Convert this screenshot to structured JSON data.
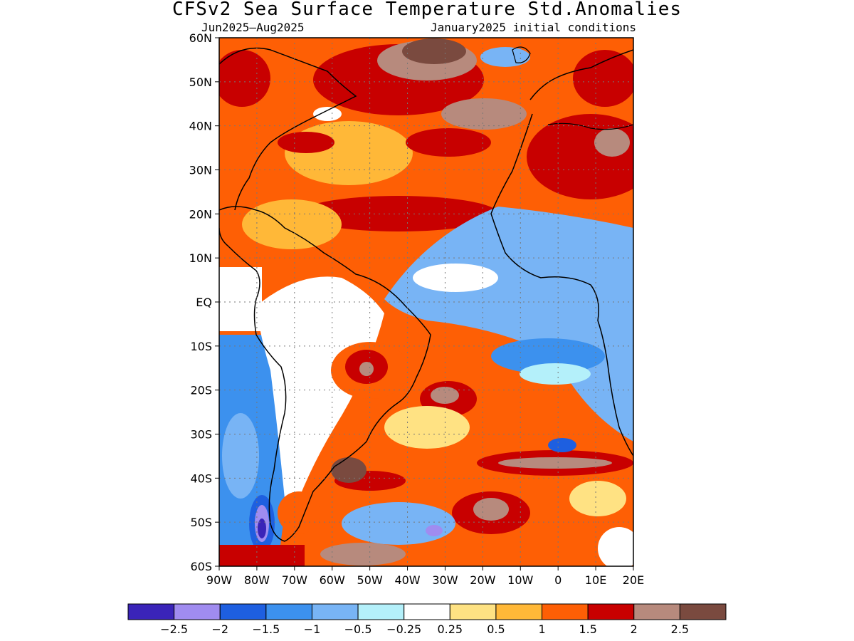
{
  "title": "CFSv2 Sea Surface Temperature Std.Anomalies",
  "subtitle_left": "Jun2025–Aug2025",
  "subtitle_right": "January2025 initial conditions",
  "map": {
    "lon_range": [
      -90,
      20
    ],
    "lat_range": [
      -60,
      60
    ],
    "lat_labels": [
      {
        "lat": 60,
        "label": "60N"
      },
      {
        "lat": 50,
        "label": "50N"
      },
      {
        "lat": 40,
        "label": "40N"
      },
      {
        "lat": 30,
        "label": "30N"
      },
      {
        "lat": 20,
        "label": "20N"
      },
      {
        "lat": 10,
        "label": "10N"
      },
      {
        "lat": 0,
        "label": "EQ"
      },
      {
        "lat": -10,
        "label": "10S"
      },
      {
        "lat": -20,
        "label": "20S"
      },
      {
        "lat": -30,
        "label": "30S"
      },
      {
        "lat": -40,
        "label": "40S"
      },
      {
        "lat": -50,
        "label": "50S"
      },
      {
        "lat": -60,
        "label": "60S"
      }
    ],
    "lon_labels": [
      {
        "lon": -90,
        "label": "90W"
      },
      {
        "lon": -80,
        "label": "80W"
      },
      {
        "lon": -70,
        "label": "70W"
      },
      {
        "lon": -60,
        "label": "60W"
      },
      {
        "lon": -50,
        "label": "50W"
      },
      {
        "lon": -40,
        "label": "40W"
      },
      {
        "lon": -30,
        "label": "30W"
      },
      {
        "lon": -20,
        "label": "20W"
      },
      {
        "lon": -10,
        "label": "10W"
      },
      {
        "lon": 0,
        "label": "0"
      },
      {
        "lon": 10,
        "label": "10E"
      },
      {
        "lon": 20,
        "label": "20E"
      }
    ],
    "grid": "dotted",
    "colorbar": {
      "colors": [
        "#3a24b8",
        "#a08cf0",
        "#1e5fe0",
        "#3c91ee",
        "#78b4f5",
        "#b4f0fa",
        "#ffffff",
        "#fee283",
        "#ffb838",
        "#fe5f05",
        "#c80000",
        "#b78a7d",
        "#7a4a3f"
      ],
      "labels": [
        "−2.5",
        "−2",
        "−1.5",
        "−1",
        "−0.5",
        "−0.25",
        "0.25",
        "0.5",
        "1",
        "1.5",
        "2",
        "2.5"
      ]
    },
    "anomaly_fields": [
      {
        "region": "North Atlantic subtropical belt",
        "level": 1.5
      },
      {
        "region": "Northeast Atlantic and Mediterranean",
        "level": 2
      },
      {
        "region": "North Atlantic south of Greenland",
        "level": 2.5
      },
      {
        "region": "Caribbean and Gulf of Mexico",
        "level": 0.5
      },
      {
        "region": "Equatorial Atlantic",
        "level": -0.5
      },
      {
        "region": "Gulf of Guinea / southeast Atlantic",
        "level": -1
      },
      {
        "region": "Southeast Pacific off Chile",
        "level": -1
      },
      {
        "region": "Central Brazil",
        "level": 2
      },
      {
        "region": "South Atlantic subtropical band",
        "level": 2
      },
      {
        "region": "Southwest Atlantic off Patagonia",
        "level": 2.5
      },
      {
        "region": "Southeast Pacific near 50S 80W",
        "level": -2.5
      }
    ]
  }
}
